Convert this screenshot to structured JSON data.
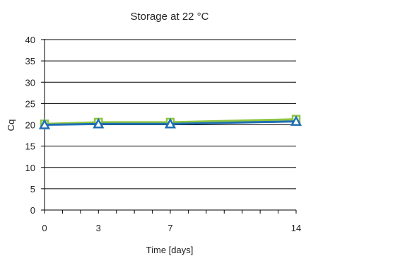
{
  "chart_data": {
    "type": "line",
    "title": "Storage at 22 °C",
    "xlabel": "Time [days]",
    "ylabel": "Cq",
    "x": [
      0,
      3,
      7,
      14
    ],
    "xlim": [
      0,
      14
    ],
    "ylim": [
      0,
      40
    ],
    "yticks": [
      "0",
      "5",
      "10",
      "15",
      "20",
      "25",
      "30",
      "35",
      "40"
    ],
    "xticks": [
      "0",
      "3",
      "7",
      "14"
    ],
    "grid": "horizontal",
    "legend": "none",
    "series": [
      {
        "values": [
          20.2,
          20.6,
          20.6,
          21.3
        ],
        "color": "#8DC63F",
        "marker": "square"
      },
      {
        "values": [
          20.0,
          20.2,
          20.2,
          20.8
        ],
        "color": "#1F6FB5",
        "marker": "triangle"
      }
    ]
  }
}
